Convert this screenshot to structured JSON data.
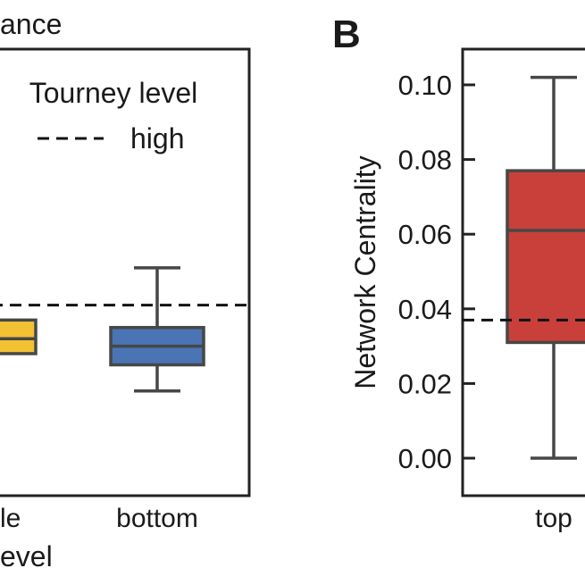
{
  "chart_data": [
    {
      "type": "box",
      "panel_label": "",
      "title": "ance",
      "xlabel": "evel",
      "categories": [
        "le",
        "bottom"
      ],
      "boxes": [
        {
          "category": "le",
          "q1": 0.028,
          "median": 0.032,
          "q3": 0.037,
          "whisker_low": null,
          "whisker_high": null,
          "color": "#f2c233"
        },
        {
          "category": "bottom",
          "q1": 0.025,
          "median": 0.03,
          "q3": 0.035,
          "whisker_low": 0.018,
          "whisker_high": 0.051,
          "color": "#4a74b4"
        }
      ],
      "reference_line": {
        "label": "high",
        "value": 0.041,
        "style": "dashed"
      },
      "legend": {
        "title": "Tourney level",
        "entries": [
          "high"
        ],
        "position": "top-right"
      },
      "ylim": [
        0.0,
        0.1
      ]
    },
    {
      "type": "box",
      "panel_label": "B",
      "ylabel": "Network Centrality",
      "yticks": [
        "0.00",
        "0.02",
        "0.04",
        "0.06",
        "0.08",
        "0.10"
      ],
      "ylim": [
        -0.002,
        0.108
      ],
      "categories": [
        "top"
      ],
      "boxes": [
        {
          "category": "top",
          "q1": 0.031,
          "median": 0.061,
          "q3": 0.077,
          "whisker_low": 0.0,
          "whisker_high": 0.102,
          "color": "#c9403a"
        }
      ],
      "reference_line": {
        "value": 0.037,
        "style": "dashed"
      }
    }
  ]
}
